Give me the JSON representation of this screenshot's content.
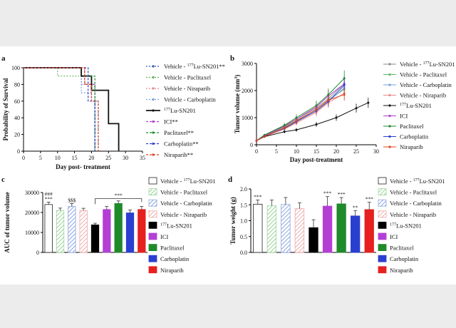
{
  "chart_data": [
    {
      "panel": "a",
      "type": "line",
      "ylabel": "Probability of Survival",
      "xlabel": "Day post- treatment",
      "xlim": [
        0,
        35
      ],
      "ylim": [
        0,
        100
      ],
      "x_ticks": [
        0,
        5,
        10,
        15,
        20,
        25,
        30,
        35
      ],
      "y_ticks": [
        0,
        20,
        40,
        60,
        80,
        100
      ],
      "legend_position": "right",
      "series": [
        {
          "name": "Vehicle - ",
          "sup": "177",
          "name_tail": "Lu-SN201**",
          "color": "#3a5fb0",
          "dash": "2,2",
          "points": [
            [
              0,
              100
            ],
            [
              17,
              100
            ],
            [
              17,
              80
            ],
            [
              21,
              80
            ],
            [
              21,
              0
            ]
          ]
        },
        {
          "name": "Vehicle - Paclitaxel",
          "color": "#5fb85f",
          "dash": "2,2",
          "points": [
            [
              0,
              100
            ],
            [
              10,
              100
            ],
            [
              10,
              90
            ],
            [
              18,
              90
            ],
            [
              18,
              80
            ],
            [
              21,
              80
            ],
            [
              21,
              0
            ]
          ]
        },
        {
          "name": "Vehicle - Niraparib",
          "color": "#e88a8a",
          "dash": "2,2",
          "points": [
            [
              0,
              100
            ],
            [
              18,
              100
            ],
            [
              18,
              80
            ],
            [
              20,
              80
            ],
            [
              20,
              60
            ],
            [
              22,
              60
            ],
            [
              22,
              0
            ]
          ]
        },
        {
          "name": "Vehicle - Carboplatin",
          "color": "#7aa0d8",
          "dash": "2,2",
          "points": [
            [
              0,
              100
            ],
            [
              17,
              100
            ],
            [
              17,
              70
            ],
            [
              20,
              70
            ],
            [
              20,
              60
            ],
            [
              22,
              60
            ],
            [
              22,
              0
            ]
          ]
        },
        {
          "name": "",
          "sup": "177",
          "name_tail": "Lu-SN201",
          "color": "#111111",
          "dash": "",
          "points": [
            [
              0,
              100
            ],
            [
              17,
              100
            ],
            [
              17,
              90
            ],
            [
              20,
              90
            ],
            [
              20,
              73
            ],
            [
              25,
              73
            ],
            [
              25,
              33
            ],
            [
              28,
              33
            ],
            [
              28,
              0
            ]
          ]
        },
        {
          "name": "ICI**",
          "color": "#b03fd0",
          "dash": "3,2",
          "points": [
            [
              0,
              100
            ],
            [
              18,
              100
            ],
            [
              18,
              80
            ],
            [
              21,
              80
            ],
            [
              21,
              0
            ]
          ]
        },
        {
          "name": "Paclitaxel**",
          "color": "#1f8a2a",
          "dash": "3,2",
          "points": [
            [
              0,
              100
            ],
            [
              18,
              100
            ],
            [
              18,
              90
            ],
            [
              21,
              90
            ],
            [
              21,
              0
            ]
          ]
        },
        {
          "name": "Carboplatin**",
          "color": "#2a3fd0",
          "dash": "3,2",
          "points": [
            [
              0,
              100
            ],
            [
              19,
              100
            ],
            [
              19,
              60
            ],
            [
              21,
              60
            ],
            [
              21,
              0
            ]
          ]
        },
        {
          "name": "Niraparib**",
          "color": "#e0401f",
          "dash": "3,2",
          "points": [
            [
              0,
              100
            ],
            [
              18,
              100
            ],
            [
              18,
              80
            ],
            [
              20,
              80
            ],
            [
              20,
              60
            ],
            [
              22,
              60
            ],
            [
              22,
              0
            ]
          ]
        }
      ]
    },
    {
      "panel": "b",
      "type": "line",
      "ylabel": "Tumor volume (mm",
      "ylabel_sup": "3",
      "ylabel_tail": ")",
      "xlabel": "Day post-treatment",
      "xlim": [
        0,
        30
      ],
      "ylim": [
        0,
        3000
      ],
      "x_ticks": [
        0,
        5,
        10,
        15,
        20,
        25,
        30
      ],
      "y_ticks": [
        0,
        1000,
        2000,
        3000
      ],
      "legend_position": "right",
      "x": [
        0,
        2,
        7,
        10,
        15,
        18,
        22
      ],
      "series": [
        {
          "name": "Vehicle - ",
          "sup": "177",
          "name_tail": "Lu-SN201",
          "color": "#8a8a8a",
          "values": [
            150,
            350,
            700,
            950,
            1350,
            1700,
            2250
          ]
        },
        {
          "name": "Vehicle - Paclitaxel",
          "color": "#5fb85f",
          "values": [
            150,
            330,
            650,
            900,
            1300,
            1650,
            2050
          ]
        },
        {
          "name": "Vehicle - Carboplatin",
          "color": "#7aa0d8",
          "values": [
            150,
            320,
            600,
            850,
            1250,
            1600,
            2100
          ]
        },
        {
          "name": "Vehicle - Niraparib",
          "color": "#e88a8a",
          "values": [
            150,
            300,
            580,
            800,
            1200,
            1550,
            1900
          ]
        },
        {
          "name": "",
          "sup": "177",
          "name_tail": "Lu-SN201",
          "color": "#111111",
          "x": [
            0,
            2,
            7,
            10,
            15,
            20,
            25,
            28
          ],
          "values": [
            150,
            300,
            480,
            550,
            750,
            1000,
            1350,
            1550
          ]
        },
        {
          "name": "ICI",
          "color": "#b03fd0",
          "values": [
            150,
            340,
            680,
            950,
            1400,
            1800,
            2250
          ]
        },
        {
          "name": "Paclitaxel",
          "color": "#1f8a2a",
          "values": [
            150,
            360,
            720,
            1000,
            1450,
            1850,
            2450
          ]
        },
        {
          "name": "Carboplatin",
          "color": "#2a3fd0",
          "values": [
            150,
            320,
            600,
            850,
            1250,
            1600,
            2200
          ]
        },
        {
          "name": "Niraparib",
          "color": "#e0401f",
          "values": [
            150,
            310,
            620,
            880,
            1300,
            1650,
            1850
          ]
        }
      ]
    },
    {
      "panel": "c",
      "type": "bar",
      "ylabel": "AUC of tumor volume",
      "ylim": [
        0,
        30000
      ],
      "y_ticks": [
        0,
        10000,
        20000,
        30000
      ],
      "legend_position": "right",
      "categories": [
        "Vehicle - 177Lu-SN201",
        "Vehicle - Paclitaxel",
        "Vehicle - Carboplatin",
        "Vehicle - Niraparib",
        "177Lu-SN201",
        "ICI",
        "Paclitaxel",
        "Carboplatin",
        "Niraparib"
      ],
      "legend": [
        {
          "name": "Vehicle - ",
          "sup": "177",
          "name_tail": "Lu-SN201",
          "color": "#ffffff",
          "pattern": "open"
        },
        {
          "name": "Vehicle - Paclitaxel",
          "color": "#9fd69f",
          "pattern": "hatch"
        },
        {
          "name": "Vehicle - Carboplatin",
          "color": "#8aa8e0",
          "pattern": "hatch"
        },
        {
          "name": "Vehicle - Niraparib",
          "color": "#f2a7a7",
          "pattern": "hatch"
        },
        {
          "name": "",
          "sup": "177",
          "name_tail": "Lu-SN201",
          "color": "#000000",
          "pattern": "solid"
        },
        {
          "name": "ICI",
          "color": "#b43fd4",
          "pattern": "solid"
        },
        {
          "name": "Paclitaxel",
          "color": "#1f8a2a",
          "pattern": "solid"
        },
        {
          "name": "Carboplatin",
          "color": "#2a3fd0",
          "pattern": "solid"
        },
        {
          "name": "Niraparib",
          "color": "#e5201f",
          "pattern": "solid"
        }
      ],
      "values": [
        24000,
        21000,
        23000,
        21000,
        13800,
        21500,
        24500,
        19800,
        21500
      ],
      "errors": [
        1200,
        1200,
        1500,
        1100,
        800,
        1500,
        1300,
        1500,
        1500
      ],
      "annotations": [
        {
          "bar": 0,
          "text": "###"
        },
        {
          "bar": 0,
          "text": "***"
        },
        {
          "bar": 2,
          "text": "$$$"
        }
      ],
      "bracket_label": "***"
    },
    {
      "panel": "d",
      "type": "bar",
      "ylabel": "Tumor weight (g)",
      "ylim": [
        0,
        2.0
      ],
      "y_ticks": [
        "0.0",
        "0.5",
        "1.0",
        "1.5",
        "2.0"
      ],
      "legend_position": "right",
      "categories": [
        "Vehicle - 177Lu-SN201",
        "Vehicle - Paclitaxel",
        "Vehicle - Carboplatin",
        "Vehicle - Niraparib",
        "177Lu-SN201",
        "ICI",
        "Paclitaxel",
        "Carboplatin",
        "Niraparib"
      ],
      "legend": [
        {
          "name": "Vehicle - ",
          "sup": "177",
          "name_tail": "Lu-SN201",
          "color": "#ffffff",
          "pattern": "open"
        },
        {
          "name": "Vehicle - Paclitaxel",
          "color": "#9fd69f",
          "pattern": "hatch"
        },
        {
          "name": "Vehicle - Carboplatin",
          "color": "#8aa8e0",
          "pattern": "hatch"
        },
        {
          "name": "Vehicle - Niraparib",
          "color": "#f2a7a7",
          "pattern": "hatch"
        },
        {
          "name": "",
          "sup": "177",
          "name_tail": "Lu-SN201",
          "color": "#000000",
          "pattern": "solid"
        },
        {
          "name": "ICI",
          "color": "#b43fd4",
          "pattern": "solid"
        },
        {
          "name": "Paclitaxel",
          "color": "#1f8a2a",
          "pattern": "solid"
        },
        {
          "name": "Carboplatin",
          "color": "#2a3fd0",
          "pattern": "solid"
        },
        {
          "name": "Niraparib",
          "color": "#e5201f",
          "pattern": "solid"
        }
      ],
      "values": [
        1.52,
        1.47,
        1.51,
        1.38,
        0.78,
        1.46,
        1.53,
        1.15,
        1.35
      ],
      "errors": [
        0.13,
        0.18,
        0.22,
        0.18,
        0.25,
        0.3,
        0.2,
        0.17,
        0.23
      ],
      "annotations": [
        {
          "bar": 0,
          "text": "***"
        },
        {
          "bar": 5,
          "text": "***"
        },
        {
          "bar": 6,
          "text": "***"
        },
        {
          "bar": 7,
          "text": "**"
        },
        {
          "bar": 8,
          "text": "***"
        }
      ]
    }
  ]
}
